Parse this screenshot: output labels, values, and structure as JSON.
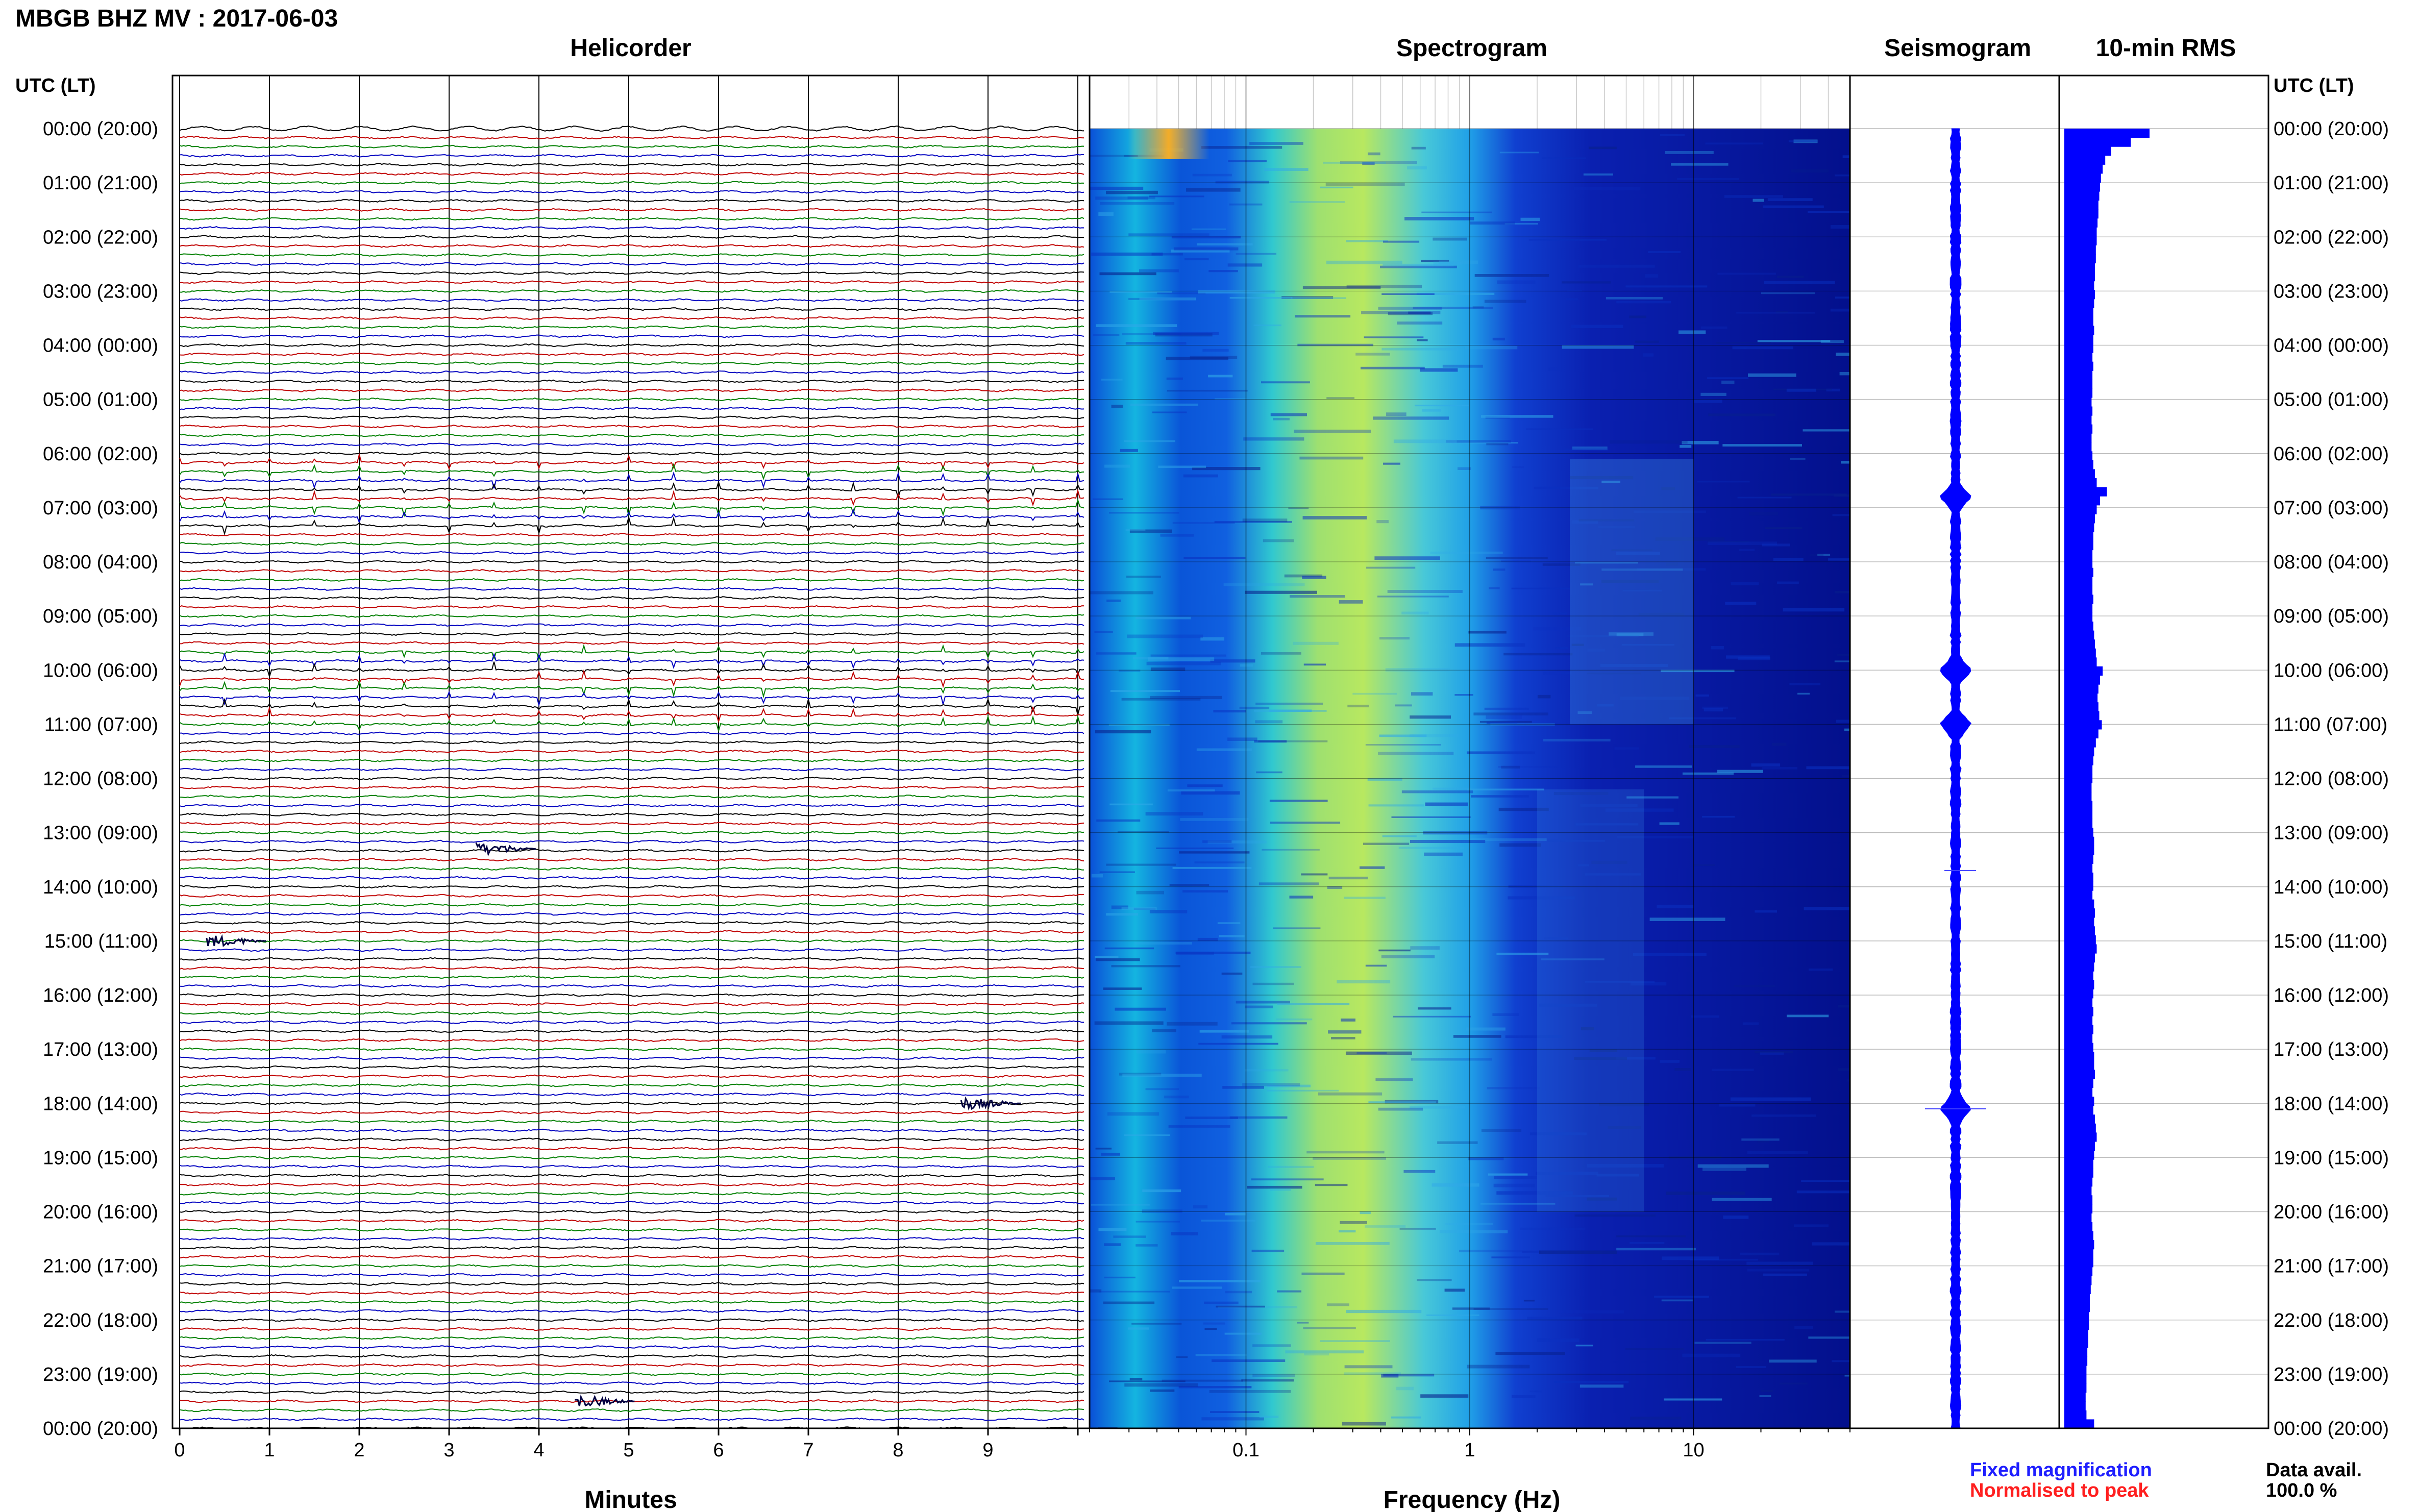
{
  "title": "MBGB BHZ MV : 2017-06-03",
  "panels": {
    "helicorder": "Helicorder",
    "spectrogram": "Spectrogram",
    "seismogram": "Seismogram",
    "rms": "10-min RMS"
  },
  "time_axis_label_left": "UTC (LT)",
  "time_axis_label_right": "UTC (LT)",
  "time_labels": [
    "00:00 (20:00)",
    "01:00 (21:00)",
    "02:00 (22:00)",
    "03:00 (23:00)",
    "04:00 (00:00)",
    "05:00 (01:00)",
    "06:00 (02:00)",
    "07:00 (03:00)",
    "08:00 (04:00)",
    "09:00 (05:00)",
    "10:00 (06:00)",
    "11:00 (07:00)",
    "12:00 (08:00)",
    "13:00 (09:00)",
    "14:00 (10:00)",
    "15:00 (11:00)",
    "16:00 (12:00)",
    "17:00 (13:00)",
    "18:00 (14:00)",
    "19:00 (15:00)",
    "20:00 (16:00)",
    "21:00 (17:00)",
    "22:00 (18:00)",
    "23:00 (19:00)",
    "00:00 (20:00)"
  ],
  "helicorder_x_ticks": [
    "0",
    "1",
    "2",
    "3",
    "4",
    "5",
    "6",
    "7",
    "8",
    "9"
  ],
  "helicorder_xlabel": "Minutes",
  "spectrogram_x_ticks": [
    "0.1",
    "1",
    "10"
  ],
  "spectrogram_xlabel": "Frequency (Hz)",
  "legend": {
    "fixed": "Fixed magnification",
    "normalised": "Normalised to peak",
    "fixed_color": "#1f1fff",
    "normalised_color": "#ff1f1f"
  },
  "data_avail_label": "Data avail.",
  "data_avail_value": "100.0 %",
  "colors": {
    "trace_cycle": [
      "#000000",
      "#c00000",
      "#008000",
      "#0000c0"
    ],
    "rms_bar": "#0000ff",
    "seismogram": "#0000ff",
    "spectrogram_low": "#00008b",
    "spectrogram_high": "#ffa500"
  },
  "chart_data": [
    {
      "type": "line",
      "name": "Helicorder",
      "xlabel": "Minutes",
      "ylabel": "UTC (LT)",
      "xlim": [
        0,
        10
      ],
      "rows_per_hour": 6,
      "hours": 24,
      "burst_rows": [
        37,
        38,
        39,
        40,
        41,
        42,
        43,
        44,
        58,
        59,
        60,
        61,
        62,
        63,
        64,
        65,
        66
      ],
      "burst_period_min": 0.5,
      "isolated_events": [
        {
          "hour": 15.0,
          "minute": 0.3
        },
        {
          "hour": 13.3,
          "minute": 3.3
        },
        {
          "hour": 18.0,
          "minute": 8.7
        },
        {
          "hour": 23.5,
          "minute": 4.4
        }
      ]
    },
    {
      "type": "heatmap",
      "name": "Spectrogram",
      "xlabel": "Frequency (Hz)",
      "x_scale": "log",
      "xlim": [
        0.02,
        50
      ],
      "ylim_hours": [
        0,
        24
      ],
      "dominant_band_hz": [
        0.15,
        0.5
      ],
      "colormap": "jet"
    },
    {
      "type": "line",
      "name": "Seismogram",
      "events_hours": [
        6.8,
        10.0,
        11.0,
        18.1
      ]
    },
    {
      "type": "bar",
      "name": "10-min RMS",
      "orientation": "horizontal",
      "values": [
        1.0,
        0.78,
        0.55,
        0.48,
        0.45,
        0.43,
        0.42,
        0.41,
        0.4,
        0.4,
        0.39,
        0.38,
        0.38,
        0.37,
        0.37,
        0.36,
        0.36,
        0.35,
        0.36,
        0.35,
        0.34,
        0.34,
        0.35,
        0.34,
        0.34,
        0.33,
        0.34,
        0.33,
        0.33,
        0.33,
        0.32,
        0.33,
        0.32,
        0.33,
        0.32,
        0.32,
        0.33,
        0.34,
        0.36,
        0.38,
        0.5,
        0.42,
        0.38,
        0.36,
        0.35,
        0.34,
        0.34,
        0.33,
        0.33,
        0.34,
        0.33,
        0.33,
        0.34,
        0.33,
        0.33,
        0.34,
        0.35,
        0.36,
        0.37,
        0.38,
        0.45,
        0.42,
        0.4,
        0.39,
        0.4,
        0.41,
        0.44,
        0.4,
        0.37,
        0.35,
        0.34,
        0.33,
        0.33,
        0.32,
        0.32,
        0.33,
        0.33,
        0.33,
        0.34,
        0.35,
        0.35,
        0.34,
        0.33,
        0.34,
        0.34,
        0.33,
        0.35,
        0.36,
        0.35,
        0.36,
        0.37,
        0.38,
        0.36,
        0.35,
        0.34,
        0.35,
        0.34,
        0.33,
        0.34,
        0.33,
        0.34,
        0.33,
        0.34,
        0.35,
        0.35,
        0.36,
        0.34,
        0.33,
        0.35,
        0.34,
        0.36,
        0.37,
        0.38,
        0.36,
        0.35,
        0.34,
        0.34,
        0.33,
        0.32,
        0.33,
        0.33,
        0.32,
        0.33,
        0.34,
        0.35,
        0.34,
        0.34,
        0.33,
        0.32,
        0.31,
        0.3,
        0.3,
        0.29,
        0.29,
        0.28,
        0.28,
        0.27,
        0.27,
        0.26,
        0.26,
        0.26,
        0.25,
        0.25,
        0.26,
        0.35
      ]
    }
  ]
}
